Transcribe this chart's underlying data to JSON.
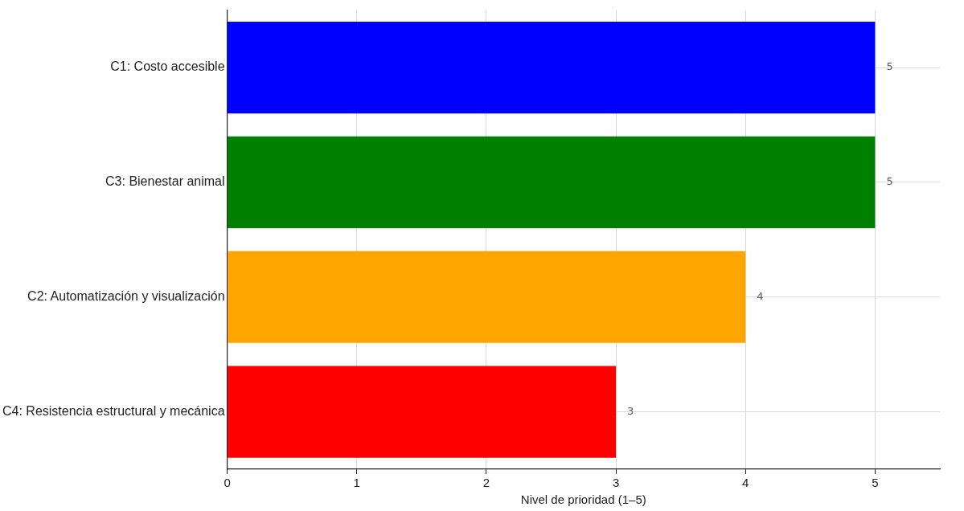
{
  "chart_data": {
    "type": "bar",
    "orientation": "horizontal",
    "xlabel": "Nivel de prioridad (1–5)",
    "categories": [
      "C1: Costo accesible",
      "C3: Bienestar animal",
      "C2: Automatización y visualización",
      "C4: Resistencia estructural y mecánica"
    ],
    "values": [
      5,
      5,
      4,
      3
    ],
    "colors": [
      "#0000ff",
      "#008000",
      "#ffa500",
      "#ff0000"
    ],
    "xlim": [
      0,
      5.5
    ],
    "xticks": [
      0,
      1,
      2,
      3,
      4,
      5
    ],
    "grid": true,
    "data_labels": true
  }
}
